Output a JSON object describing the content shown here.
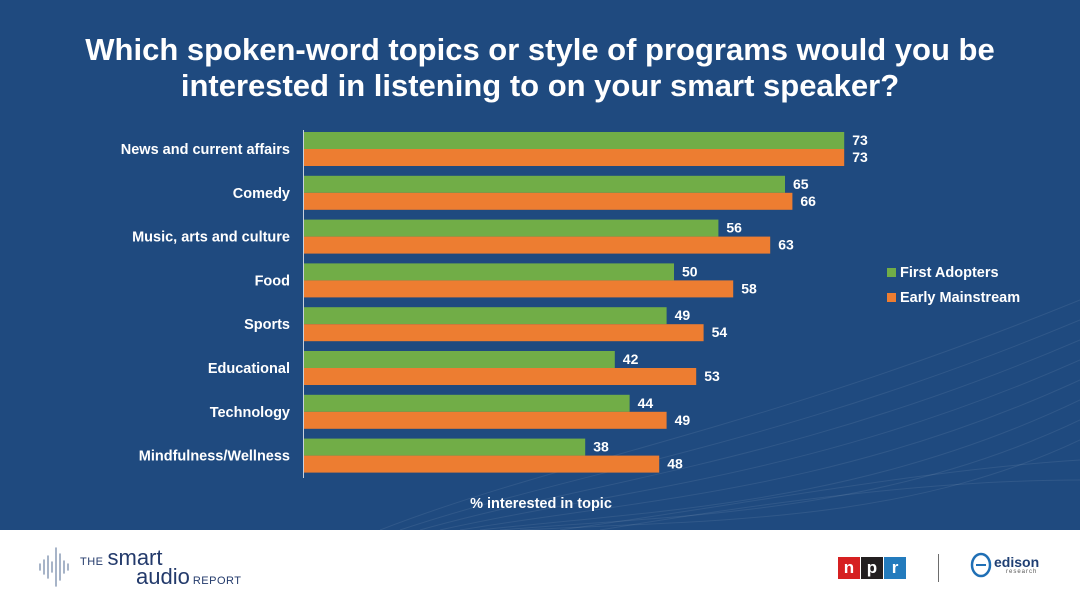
{
  "title": {
    "line1": "Which spoken-word topics or style of programs would you be",
    "line2": "interested in listening to on your smart speaker?"
  },
  "chart_data": {
    "type": "bar",
    "orientation": "horizontal",
    "title": "Which spoken-word topics or style of programs would you be interested in listening to on your smart speaker?",
    "categories": [
      "News and current affairs",
      "Comedy",
      "Music, arts and culture",
      "Food",
      "Sports",
      "Educational",
      "Technology",
      "Mindfulness/Wellness"
    ],
    "series": [
      {
        "name": "First Adopters",
        "color": "#71ad47",
        "values": [
          73,
          65,
          56,
          50,
          49,
          42,
          44,
          38
        ]
      },
      {
        "name": "Early Mainstream",
        "color": "#ed7d31",
        "values": [
          73,
          66,
          63,
          58,
          54,
          53,
          49,
          48
        ]
      }
    ],
    "xlabel": "% interested in topic",
    "ylabel": "",
    "xlim": [
      0,
      100
    ],
    "legend_position": "right",
    "grid": false
  },
  "legend": {
    "first_adopters": "First Adopters",
    "early_mainstream": "Early Mainstream"
  },
  "footer": {
    "brand_the": "THE",
    "brand_smart": "smart",
    "brand_audio": "audio",
    "brand_report": "REPORT",
    "npr_letters": [
      "n",
      "p",
      "r"
    ],
    "npr_colors": [
      "#d62021",
      "#231f20",
      "#237bbd"
    ],
    "edison_name": "edison",
    "edison_sub": "research"
  }
}
